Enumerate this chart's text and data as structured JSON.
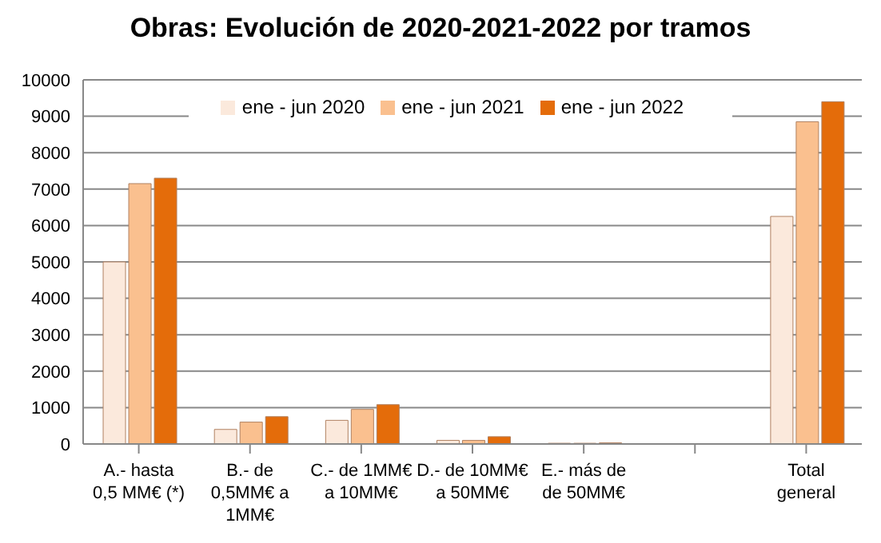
{
  "chart_data": {
    "type": "bar",
    "title": "Obras: Evolución de 2020-2021-2022 por tramos",
    "categories": [
      "A.- hasta 0,5 MM€ (*)",
      "B.- de 0,5MM€ a 1MM€",
      "C.- de 1MM€ a 10MM€",
      "D.- de 10MM€ a 50MM€",
      "E.- más de de 50MM€",
      null,
      "Total general"
    ],
    "series": [
      {
        "name": "ene - jun 2020",
        "color": "#fbe9dc",
        "values": [
          5000,
          400,
          650,
          100,
          20,
          null,
          6250
        ]
      },
      {
        "name": "ene - jun 2021",
        "color": "#fac08f",
        "values": [
          7150,
          600,
          950,
          100,
          20,
          null,
          8850
        ]
      },
      {
        "name": "ene - jun 2022",
        "color": "#e46c0a",
        "values": [
          7300,
          750,
          1080,
          200,
          30,
          null,
          9400
        ]
      }
    ],
    "ylim": [
      0,
      10000
    ],
    "yticks": [
      0,
      1000,
      2000,
      3000,
      4000,
      5000,
      6000,
      7000,
      8000,
      9000,
      10000
    ],
    "grid": "y",
    "legend": "top"
  }
}
